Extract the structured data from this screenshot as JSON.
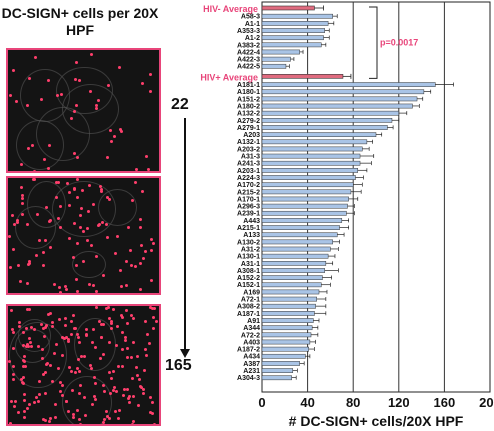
{
  "panel_title": "DC-SIGN+ cells per 20X HPF",
  "count_top": "22",
  "count_bottom": "165",
  "colors": {
    "pink": "#e8457a",
    "bar_blue": "#a9c4e6",
    "bar_stroke": "#333333",
    "avg_bar": "#e06b7f"
  },
  "chart_data": {
    "type": "bar",
    "orientation": "horizontal",
    "xlabel": "# DC-SIGN+ cells/20X HPF",
    "xlim": [
      0,
      200
    ],
    "xticks": [
      0,
      40,
      80,
      120,
      160,
      200
    ],
    "vertical_gridlines": [
      40,
      80,
      120,
      160
    ],
    "significance": {
      "label": "p=0.0017",
      "between": [
        "HIV- Average",
        "HIV+ Average"
      ]
    },
    "groups": [
      {
        "name": "HIV- Average",
        "average": 46,
        "average_error": 8,
        "samples": [
          {
            "label": "A58-3",
            "value": 62,
            "error": 4
          },
          {
            "label": "A1-1",
            "value": 58,
            "error": 5
          },
          {
            "label": "A353-3",
            "value": 55,
            "error": 4
          },
          {
            "label": "A1-2",
            "value": 54,
            "error": 5
          },
          {
            "label": "A383-2",
            "value": 52,
            "error": 4
          },
          {
            "label": "A422-4",
            "value": 33,
            "error": 3
          },
          {
            "label": "A422-3",
            "value": 25,
            "error": 3
          },
          {
            "label": "A422-5",
            "value": 21,
            "error": 3
          }
        ]
      },
      {
        "name": "HIV+ Average",
        "average": 71,
        "average_error": 7,
        "samples": [
          {
            "label": "A181-1",
            "value": 152,
            "error": 16
          },
          {
            "label": "A180-1",
            "value": 142,
            "error": 6
          },
          {
            "label": "A151-2",
            "value": 136,
            "error": 5
          },
          {
            "label": "A180-2",
            "value": 132,
            "error": 6
          },
          {
            "label": "A132-2",
            "value": 120,
            "error": 7
          },
          {
            "label": "A279-2",
            "value": 114,
            "error": 6
          },
          {
            "label": "A279-1",
            "value": 110,
            "error": 5
          },
          {
            "label": "A203",
            "value": 100,
            "error": 5
          },
          {
            "label": "A132-1",
            "value": 92,
            "error": 5
          },
          {
            "label": "A203-2",
            "value": 88,
            "error": 6
          },
          {
            "label": "A31-3",
            "value": 86,
            "error": 12
          },
          {
            "label": "A241-3",
            "value": 86,
            "error": 10
          },
          {
            "label": "A203-1",
            "value": 84,
            "error": 8
          },
          {
            "label": "A224-3",
            "value": 82,
            "error": 7
          },
          {
            "label": "A170-2",
            "value": 80,
            "error": 8
          },
          {
            "label": "A215-2",
            "value": 78,
            "error": 9
          },
          {
            "label": "A170-1",
            "value": 76,
            "error": 8
          },
          {
            "label": "A296-3",
            "value": 75,
            "error": 6
          },
          {
            "label": "A239-1",
            "value": 74,
            "error": 7
          },
          {
            "label": "A443",
            "value": 70,
            "error": 6
          },
          {
            "label": "A215-1",
            "value": 68,
            "error": 8
          },
          {
            "label": "A133",
            "value": 66,
            "error": 6
          },
          {
            "label": "A130-2",
            "value": 62,
            "error": 6
          },
          {
            "label": "A31-2",
            "value": 60,
            "error": 7
          },
          {
            "label": "A130-1",
            "value": 58,
            "error": 6
          },
          {
            "label": "A31-1",
            "value": 56,
            "error": 6
          },
          {
            "label": "A308-1",
            "value": 55,
            "error": 12
          },
          {
            "label": "A152-2",
            "value": 53,
            "error": 8
          },
          {
            "label": "A152-1",
            "value": 52,
            "error": 8
          },
          {
            "label": "A169",
            "value": 50,
            "error": 7
          },
          {
            "label": "A72-1",
            "value": 48,
            "error": 8
          },
          {
            "label": "A308-2",
            "value": 47,
            "error": 9
          },
          {
            "label": "A187-1",
            "value": 46,
            "error": 10
          },
          {
            "label": "A91",
            "value": 45,
            "error": 5
          },
          {
            "label": "A344",
            "value": 44,
            "error": 5
          },
          {
            "label": "A72-2",
            "value": 43,
            "error": 6
          },
          {
            "label": "A403",
            "value": 42,
            "error": 5
          },
          {
            "label": "A187-2",
            "value": 41,
            "error": 5
          },
          {
            "label": "A434",
            "value": 38,
            "error": 4
          },
          {
            "label": "A387",
            "value": 33,
            "error": 4
          },
          {
            "label": "A231",
            "value": 27,
            "error": 4
          },
          {
            "label": "A304-3",
            "value": 26,
            "error": 4
          }
        ]
      }
    ]
  }
}
